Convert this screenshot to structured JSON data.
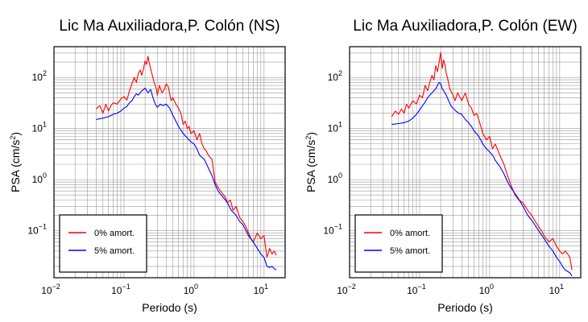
{
  "chart_data": [
    {
      "type": "line",
      "title": "Lic Ma Auxiliadora,P. Colón (NS)",
      "xlabel": "Periodo (s)",
      "ylabel": "PSA (cm/s²)",
      "ylabel_main": "PSA (cm/s",
      "ylabel_sup": "2",
      "ylabel_end": ")",
      "xscale": "log",
      "yscale": "log",
      "xlim": [
        0.01,
        20
      ],
      "ylim": [
        0.012,
        400
      ],
      "x_ticks": [
        {
          "value": 0.01,
          "base": "10",
          "exp": "−2"
        },
        {
          "value": 0.1,
          "base": "10",
          "exp": "−1"
        },
        {
          "value": 1,
          "base": "10",
          "exp": "0"
        },
        {
          "value": 10,
          "base": "10",
          "exp": "1"
        }
      ],
      "y_ticks": [
        {
          "value": 0.1,
          "base": "10",
          "exp": "−1"
        },
        {
          "value": 1,
          "base": "10",
          "exp": "0"
        },
        {
          "value": 10,
          "base": "10",
          "exp": "1"
        },
        {
          "value": 100,
          "base": "10",
          "exp": "2"
        }
      ],
      "grid": true,
      "legend_position": "bottom-left",
      "series": [
        {
          "name": "0% amort.",
          "color": "#ff0000",
          "points": [
            [
              0.04,
              24
            ],
            [
              0.045,
              28
            ],
            [
              0.05,
              20
            ],
            [
              0.055,
              30
            ],
            [
              0.06,
              22
            ],
            [
              0.065,
              28
            ],
            [
              0.07,
              32
            ],
            [
              0.08,
              30
            ],
            [
              0.09,
              38
            ],
            [
              0.1,
              42
            ],
            [
              0.11,
              36
            ],
            [
              0.12,
              55
            ],
            [
              0.13,
              75
            ],
            [
              0.14,
              100
            ],
            [
              0.15,
              80
            ],
            [
              0.16,
              120
            ],
            [
              0.17,
              140
            ],
            [
              0.18,
              110
            ],
            [
              0.19,
              150
            ],
            [
              0.2,
              210
            ],
            [
              0.21,
              180
            ],
            [
              0.22,
              260
            ],
            [
              0.23,
              190
            ],
            [
              0.25,
              120
            ],
            [
              0.27,
              80
            ],
            [
              0.29,
              60
            ],
            [
              0.3,
              45
            ],
            [
              0.32,
              70
            ],
            [
              0.35,
              50
            ],
            [
              0.38,
              60
            ],
            [
              0.4,
              75
            ],
            [
              0.43,
              65
            ],
            [
              0.47,
              35
            ],
            [
              0.5,
              40
            ],
            [
              0.55,
              30
            ],
            [
              0.6,
              25
            ],
            [
              0.65,
              20
            ],
            [
              0.7,
              12
            ],
            [
              0.75,
              14
            ],
            [
              0.8,
              10
            ],
            [
              0.85,
              11
            ],
            [
              0.9,
              8
            ],
            [
              1.0,
              9
            ],
            [
              1.1,
              6
            ],
            [
              1.2,
              8
            ],
            [
              1.3,
              5
            ],
            [
              1.4,
              4
            ],
            [
              1.5,
              3.6
            ],
            [
              1.6,
              3
            ],
            [
              1.8,
              2.5
            ],
            [
              2.0,
              0.9
            ],
            [
              2.2,
              0.7
            ],
            [
              2.5,
              0.55
            ],
            [
              2.8,
              0.45
            ],
            [
              3.0,
              0.35
            ],
            [
              3.3,
              0.4
            ],
            [
              3.6,
              0.25
            ],
            [
              4.0,
              0.3
            ],
            [
              4.5,
              0.18
            ],
            [
              5.0,
              0.15
            ],
            [
              5.5,
              0.12
            ],
            [
              6.0,
              0.09
            ],
            [
              6.5,
              0.07
            ],
            [
              7.0,
              0.06
            ],
            [
              8.0,
              0.09
            ],
            [
              9.0,
              0.07
            ],
            [
              10.0,
              0.08
            ],
            [
              11.0,
              0.03
            ],
            [
              12.0,
              0.045
            ],
            [
              13.0,
              0.035
            ],
            [
              14.0,
              0.04
            ],
            [
              15.0,
              0.033
            ]
          ]
        },
        {
          "name": "5% amort.",
          "color": "#0000ff",
          "points": [
            [
              0.04,
              15
            ],
            [
              0.05,
              16
            ],
            [
              0.06,
              17
            ],
            [
              0.07,
              19
            ],
            [
              0.08,
              20
            ],
            [
              0.09,
              22
            ],
            [
              0.1,
              25
            ],
            [
              0.11,
              27
            ],
            [
              0.12,
              32
            ],
            [
              0.13,
              35
            ],
            [
              0.14,
              42
            ],
            [
              0.15,
              48
            ],
            [
              0.16,
              45
            ],
            [
              0.17,
              50
            ],
            [
              0.18,
              55
            ],
            [
              0.19,
              58
            ],
            [
              0.2,
              62
            ],
            [
              0.21,
              55
            ],
            [
              0.22,
              50
            ],
            [
              0.24,
              58
            ],
            [
              0.26,
              40
            ],
            [
              0.28,
              30
            ],
            [
              0.3,
              26
            ],
            [
              0.33,
              30
            ],
            [
              0.36,
              28
            ],
            [
              0.4,
              30
            ],
            [
              0.45,
              25
            ],
            [
              0.5,
              18
            ],
            [
              0.55,
              14
            ],
            [
              0.6,
              11
            ],
            [
              0.7,
              8
            ],
            [
              0.8,
              6.5
            ],
            [
              0.9,
              5.5
            ],
            [
              1.0,
              5
            ],
            [
              1.1,
              4
            ],
            [
              1.2,
              3
            ],
            [
              1.4,
              2.5
            ],
            [
              1.6,
              1.7
            ],
            [
              1.8,
              1.2
            ],
            [
              2.0,
              0.8
            ],
            [
              2.2,
              0.6
            ],
            [
              2.5,
              0.48
            ],
            [
              2.8,
              0.4
            ],
            [
              3.0,
              0.35
            ],
            [
              3.4,
              0.25
            ],
            [
              4.0,
              0.2
            ],
            [
              4.5,
              0.15
            ],
            [
              5.0,
              0.13
            ],
            [
              6.0,
              0.08
            ],
            [
              7.0,
              0.06
            ],
            [
              8.0,
              0.045
            ],
            [
              9.0,
              0.035
            ],
            [
              10.0,
              0.03
            ],
            [
              11.0,
              0.02
            ],
            [
              12.0,
              0.019
            ],
            [
              13.0,
              0.02
            ],
            [
              14.0,
              0.018
            ],
            [
              15.0,
              0.017
            ]
          ]
        }
      ]
    },
    {
      "type": "line",
      "title": "Lic Ma Auxiliadora,P. Colón (EW)",
      "xlabel": "Periodo (s)",
      "ylabel": "PSA (cm/s²)",
      "ylabel_main": "PSA (cm/s",
      "ylabel_sup": "2",
      "ylabel_end": ")",
      "xscale": "log",
      "yscale": "log",
      "xlim": [
        0.01,
        20
      ],
      "ylim": [
        0.012,
        400
      ],
      "x_ticks": [
        {
          "value": 0.01,
          "base": "10",
          "exp": "−2"
        },
        {
          "value": 0.1,
          "base": "10",
          "exp": "−1"
        },
        {
          "value": 1,
          "base": "10",
          "exp": "0"
        },
        {
          "value": 10,
          "base": "10",
          "exp": "1"
        }
      ],
      "y_ticks": [
        {
          "value": 0.1,
          "base": "10",
          "exp": "−1"
        },
        {
          "value": 1,
          "base": "10",
          "exp": "0"
        },
        {
          "value": 10,
          "base": "10",
          "exp": "1"
        },
        {
          "value": 100,
          "base": "10",
          "exp": "2"
        }
      ],
      "grid": true,
      "legend_position": "bottom-left",
      "series": [
        {
          "name": "0% amort.",
          "color": "#ff0000",
          "points": [
            [
              0.04,
              17
            ],
            [
              0.045,
              22
            ],
            [
              0.05,
              19
            ],
            [
              0.055,
              24
            ],
            [
              0.06,
              20
            ],
            [
              0.065,
              30
            ],
            [
              0.07,
              25
            ],
            [
              0.08,
              35
            ],
            [
              0.09,
              30
            ],
            [
              0.1,
              45
            ],
            [
              0.11,
              40
            ],
            [
              0.12,
              70
            ],
            [
              0.13,
              55
            ],
            [
              0.14,
              80
            ],
            [
              0.15,
              110
            ],
            [
              0.16,
              90
            ],
            [
              0.17,
              170
            ],
            [
              0.18,
              130
            ],
            [
              0.19,
              200
            ],
            [
              0.2,
              310
            ],
            [
              0.21,
              150
            ],
            [
              0.22,
              220
            ],
            [
              0.23,
              180
            ],
            [
              0.24,
              120
            ],
            [
              0.25,
              100
            ],
            [
              0.27,
              60
            ],
            [
              0.3,
              45
            ],
            [
              0.32,
              35
            ],
            [
              0.35,
              50
            ],
            [
              0.38,
              40
            ],
            [
              0.4,
              35
            ],
            [
              0.45,
              50
            ],
            [
              0.5,
              30
            ],
            [
              0.55,
              25
            ],
            [
              0.6,
              18
            ],
            [
              0.65,
              20
            ],
            [
              0.7,
              15
            ],
            [
              0.8,
              8
            ],
            [
              0.9,
              6
            ],
            [
              1.0,
              7
            ],
            [
              1.1,
              4
            ],
            [
              1.2,
              5
            ],
            [
              1.4,
              3
            ],
            [
              1.6,
              2
            ],
            [
              1.8,
              1.2
            ],
            [
              2.0,
              0.8
            ],
            [
              2.3,
              0.5
            ],
            [
              2.6,
              0.4
            ],
            [
              3.0,
              0.35
            ],
            [
              3.5,
              0.25
            ],
            [
              4.0,
              0.2
            ],
            [
              4.5,
              0.15
            ],
            [
              5.0,
              0.12
            ],
            [
              5.5,
              0.1
            ],
            [
              6.0,
              0.08
            ],
            [
              7.0,
              0.06
            ],
            [
              8.0,
              0.07
            ],
            [
              9.0,
              0.05
            ],
            [
              10.0,
              0.04
            ],
            [
              11.0,
              0.035
            ],
            [
              12.0,
              0.04
            ],
            [
              13.0,
              0.035
            ],
            [
              14.0,
              0.03
            ],
            [
              15.0,
              0.017
            ]
          ]
        },
        {
          "name": "5% amort.",
          "color": "#0000ff",
          "points": [
            [
              0.04,
              12
            ],
            [
              0.05,
              12.5
            ],
            [
              0.06,
              13
            ],
            [
              0.07,
              14
            ],
            [
              0.08,
              16
            ],
            [
              0.09,
              19
            ],
            [
              0.1,
              23
            ],
            [
              0.11,
              28
            ],
            [
              0.12,
              33
            ],
            [
              0.13,
              40
            ],
            [
              0.14,
              45
            ],
            [
              0.15,
              50
            ],
            [
              0.16,
              55
            ],
            [
              0.17,
              60
            ],
            [
              0.18,
              70
            ],
            [
              0.19,
              80
            ],
            [
              0.2,
              75
            ],
            [
              0.21,
              60
            ],
            [
              0.22,
              55
            ],
            [
              0.24,
              45
            ],
            [
              0.26,
              35
            ],
            [
              0.28,
              28
            ],
            [
              0.3,
              25
            ],
            [
              0.33,
              22
            ],
            [
              0.36,
              20
            ],
            [
              0.4,
              19
            ],
            [
              0.45,
              15
            ],
            [
              0.5,
              13
            ],
            [
              0.55,
              11
            ],
            [
              0.6,
              9
            ],
            [
              0.7,
              7
            ],
            [
              0.8,
              5
            ],
            [
              0.9,
              4
            ],
            [
              1.0,
              3.5
            ],
            [
              1.1,
              3
            ],
            [
              1.2,
              2.4
            ],
            [
              1.4,
              1.8
            ],
            [
              1.6,
              1.3
            ],
            [
              1.8,
              0.9
            ],
            [
              2.0,
              0.7
            ],
            [
              2.5,
              0.45
            ],
            [
              3.0,
              0.3
            ],
            [
              3.5,
              0.2
            ],
            [
              4.0,
              0.16
            ],
            [
              5.0,
              0.1
            ],
            [
              6.0,
              0.07
            ],
            [
              7.0,
              0.05
            ],
            [
              8.0,
              0.04
            ],
            [
              9.0,
              0.03
            ],
            [
              10.0,
              0.025
            ],
            [
              11.0,
              0.02
            ],
            [
              12.0,
              0.017
            ],
            [
              13.0,
              0.016
            ],
            [
              14.0,
              0.015
            ],
            [
              15.0,
              0.013
            ]
          ]
        }
      ]
    }
  ]
}
